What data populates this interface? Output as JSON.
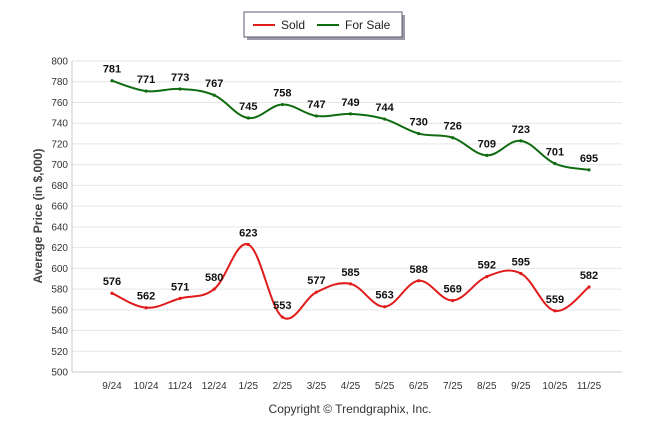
{
  "chart_data": {
    "type": "line",
    "title": "",
    "xlabel": "",
    "ylabel": "Average Price (in $,000)",
    "ylim": [
      500,
      800
    ],
    "ytick_step": 20,
    "grid": true,
    "legend_position": "top-center",
    "categories": [
      "9/24",
      "10/24",
      "11/24",
      "12/24",
      "1/25",
      "2/25",
      "3/25",
      "4/25",
      "5/25",
      "6/25",
      "7/25",
      "8/25",
      "9/25",
      "10/25",
      "11/25"
    ],
    "series": [
      {
        "name": "Sold",
        "color": "#e01b1b",
        "values": [
          576,
          562,
          571,
          580,
          623,
          553,
          577,
          585,
          563,
          588,
          569,
          592,
          595,
          559,
          582
        ]
      },
      {
        "name": "For Sale",
        "color": "#0f6b0f",
        "values": [
          781,
          771,
          773,
          767,
          745,
          758,
          747,
          749,
          744,
          730,
          726,
          709,
          723,
          701,
          695
        ]
      }
    ],
    "footer": "Copyright © Trendgraphix, Inc."
  }
}
